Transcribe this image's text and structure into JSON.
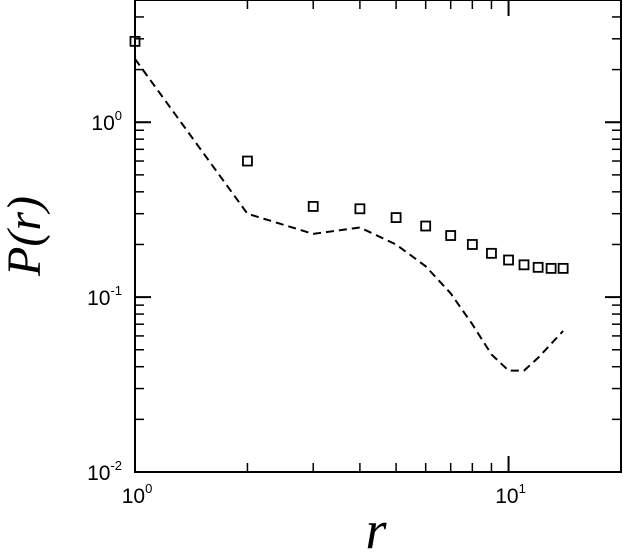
{
  "chart_data": {
    "type": "scatter",
    "title": "",
    "xlabel": "r",
    "ylabel": "P(r)",
    "xscale": "log",
    "yscale": "log",
    "xlim": [
      1,
      20
    ],
    "ylim": [
      0.01,
      5
    ],
    "grid": false,
    "legend": "none",
    "x_ticks": [
      {
        "value": 1,
        "base": "10",
        "exp": "0"
      },
      {
        "value": 10,
        "base": "10",
        "exp": "1"
      }
    ],
    "y_ticks": [
      {
        "value": 0.01,
        "base": "10",
        "exp": "-2"
      },
      {
        "value": 0.1,
        "base": "10",
        "exp": "-1"
      },
      {
        "value": 1,
        "base": "10",
        "exp": "0"
      }
    ],
    "series": [
      {
        "style": "open-square-markers",
        "color": "#000000",
        "x": [
          1,
          2,
          3,
          4,
          5,
          6,
          7,
          8,
          9,
          10,
          11,
          12,
          13,
          14
        ],
        "y": [
          2.9,
          0.6,
          0.33,
          0.32,
          0.285,
          0.255,
          0.225,
          0.2,
          0.178,
          0.163,
          0.153,
          0.148,
          0.146,
          0.146
        ]
      },
      {
        "style": "dashed-line",
        "color": "#000000",
        "x": [
          1,
          2,
          3,
          4,
          5,
          6,
          7,
          8,
          9,
          10,
          11,
          12,
          13,
          14
        ],
        "y": [
          2.3,
          0.3,
          0.23,
          0.25,
          0.2,
          0.15,
          0.105,
          0.07,
          0.047,
          0.038,
          0.038,
          0.045,
          0.054,
          0.064
        ]
      }
    ]
  }
}
